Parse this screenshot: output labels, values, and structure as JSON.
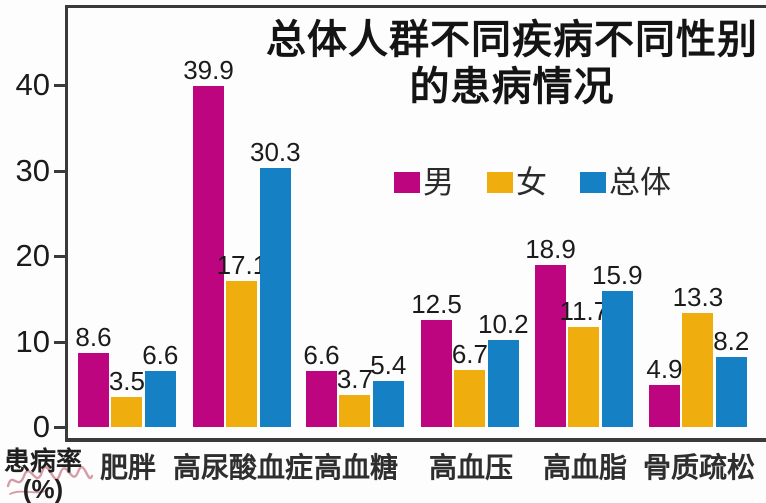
{
  "chart_data": {
    "type": "bar",
    "title_lines": [
      "总体人群不同疾病不同性别",
      "的患病情况"
    ],
    "ylabel_lines": [
      "患病率",
      "(%)"
    ],
    "categories": [
      "肥胖",
      "高尿酸血症",
      "高血糖",
      "高血压",
      "高血脂",
      "骨质疏松"
    ],
    "series": [
      {
        "name": "男",
        "color": "#BE0580",
        "values": [
          8.6,
          39.9,
          6.6,
          12.5,
          18.9,
          4.9
        ]
      },
      {
        "name": "女",
        "color": "#EFAE0E",
        "values": [
          3.5,
          17.1,
          3.7,
          6.7,
          11.7,
          13.3
        ]
      },
      {
        "name": "总体",
        "color": "#1580C4",
        "values": [
          6.6,
          30.3,
          5.4,
          10.2,
          15.9,
          8.2
        ]
      }
    ],
    "yticks": [
      0,
      10,
      20,
      30,
      40
    ],
    "ylim": [
      0,
      49
    ],
    "grid": false,
    "value_labels_shown": true,
    "legend_position": "upper-center-right",
    "axis_color": "#3a3a3a",
    "text_color": "#1b1b1b",
    "background_color": "#fdfdfd",
    "watermark_color": "#c97c8a"
  }
}
